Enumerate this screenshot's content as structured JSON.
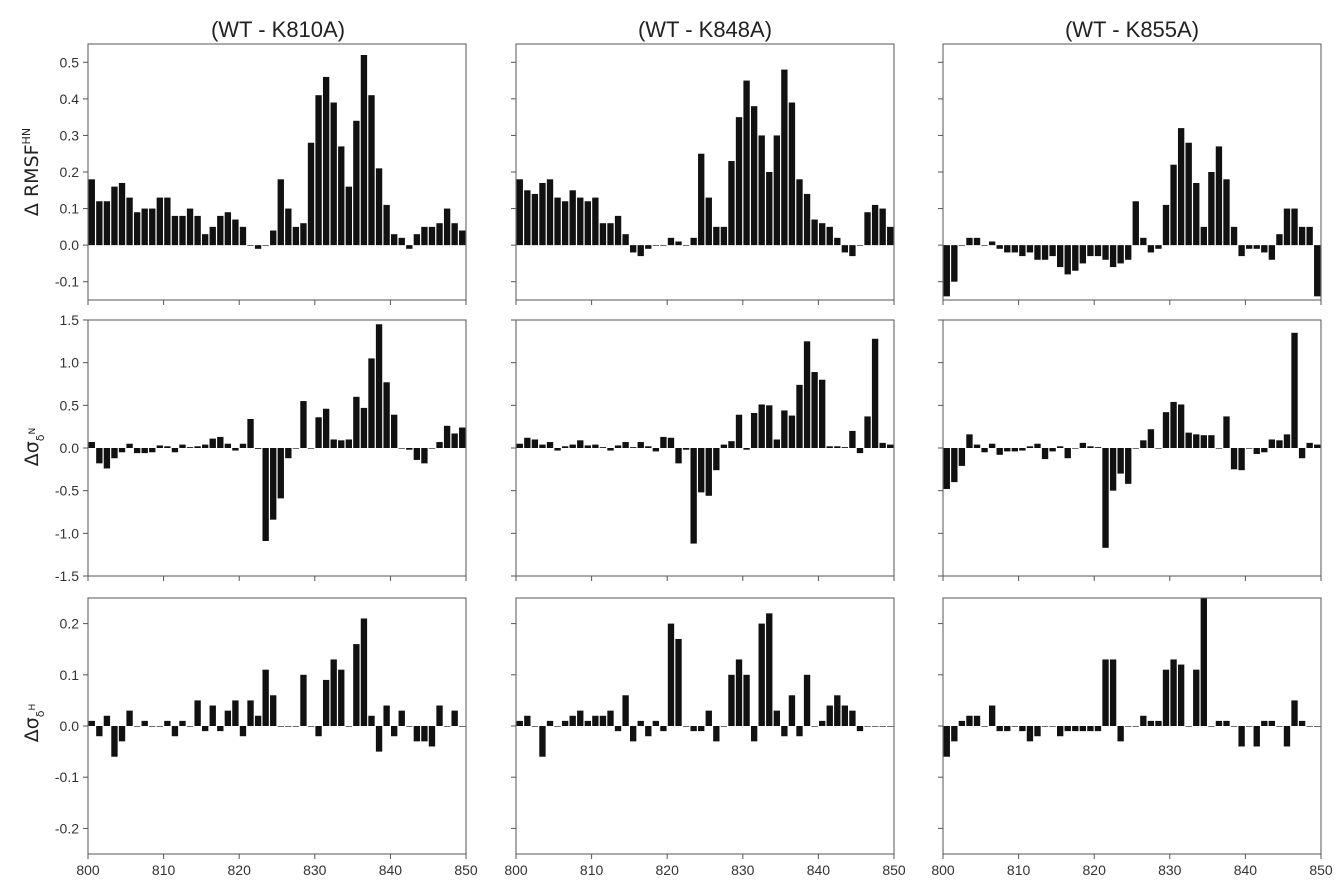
{
  "figure": {
    "panel_titles": [
      "(WT - K810A)",
      "(WT - K848A)",
      "(WT - K855A)"
    ],
    "row_ylabels": [
      {
        "main": "Δ RMSF",
        "sup": "HN"
      },
      {
        "main": "Δσ",
        "sub": "δ",
        "subsup": "N"
      },
      {
        "main": "Δσ",
        "sub": "δ",
        "subsup": "H"
      }
    ],
    "colors": {
      "bar": "#111111",
      "frame": "#555555",
      "zero": "#999999"
    }
  },
  "chart_data": [
    {
      "type": "bar",
      "row": 0,
      "col": 0,
      "title": "(WT - K810A)",
      "ylabel": "Δ RMSF^HN",
      "xlim": [
        800,
        850
      ],
      "xticks": [
        800,
        810,
        820,
        830,
        840,
        850
      ],
      "ylim": [
        -0.15,
        0.55
      ],
      "yticks": [
        -0.1,
        0.0,
        0.1,
        0.2,
        0.3,
        0.4,
        0.5
      ],
      "ytick_labels": [
        "-0.1",
        "0.0",
        "0.1",
        "0.2",
        "0.3",
        "0.4",
        "0.5"
      ],
      "x": [
        800,
        801,
        802,
        803,
        804,
        805,
        806,
        807,
        808,
        809,
        810,
        811,
        812,
        813,
        814,
        815,
        816,
        817,
        818,
        819,
        820,
        821,
        822,
        823,
        824,
        825,
        826,
        827,
        828,
        829,
        830,
        831,
        832,
        833,
        834,
        835,
        836,
        837,
        838,
        839,
        840,
        841,
        842,
        843,
        844,
        845,
        846,
        847,
        848,
        849
      ],
      "values": [
        0.18,
        0.12,
        0.12,
        0.16,
        0.17,
        0.13,
        0.09,
        0.1,
        0.1,
        0.13,
        0.13,
        0.08,
        0.08,
        0.1,
        0.08,
        0.03,
        0.05,
        0.08,
        0.09,
        0.07,
        0.05,
        0.0,
        -0.01,
        0.0,
        0.04,
        0.18,
        0.1,
        0.05,
        0.06,
        0.28,
        0.41,
        0.46,
        0.39,
        0.27,
        0.16,
        0.34,
        0.52,
        0.41,
        0.21,
        0.11,
        0.03,
        0.02,
        -0.01,
        0.03,
        0.05,
        0.05,
        0.06,
        0.1,
        0.06,
        0.04
      ]
    },
    {
      "type": "bar",
      "row": 0,
      "col": 1,
      "title": "(WT - K848A)",
      "ylabel": "",
      "xlim": [
        800,
        850
      ],
      "xticks": [
        800,
        810,
        820,
        830,
        840,
        850
      ],
      "ylim": [
        -0.15,
        0.55
      ],
      "yticks": [
        -0.1,
        0.0,
        0.1,
        0.2,
        0.3,
        0.4,
        0.5
      ],
      "x": [
        800,
        801,
        802,
        803,
        804,
        805,
        806,
        807,
        808,
        809,
        810,
        811,
        812,
        813,
        814,
        815,
        816,
        817,
        818,
        819,
        820,
        821,
        822,
        823,
        824,
        825,
        826,
        827,
        828,
        829,
        830,
        831,
        832,
        833,
        834,
        835,
        836,
        837,
        838,
        839,
        840,
        841,
        842,
        843,
        844,
        845,
        846,
        847,
        848,
        849
      ],
      "values": [
        0.18,
        0.15,
        0.14,
        0.17,
        0.18,
        0.13,
        0.12,
        0.15,
        0.13,
        0.12,
        0.13,
        0.06,
        0.06,
        0.08,
        0.03,
        -0.02,
        -0.03,
        -0.01,
        0.0,
        0.0,
        0.02,
        0.01,
        0.0,
        0.02,
        0.25,
        0.13,
        0.05,
        0.05,
        0.23,
        0.35,
        0.45,
        0.38,
        0.3,
        0.2,
        0.3,
        0.48,
        0.39,
        0.18,
        0.14,
        0.07,
        0.06,
        0.05,
        0.02,
        -0.02,
        -0.03,
        0.0,
        0.09,
        0.11,
        0.1,
        0.05
      ]
    },
    {
      "type": "bar",
      "row": 0,
      "col": 2,
      "title": "(WT - K855A)",
      "ylabel": "",
      "xlim": [
        800,
        850
      ],
      "xticks": [
        800,
        810,
        820,
        830,
        840,
        850
      ],
      "ylim": [
        -0.15,
        0.55
      ],
      "yticks": [
        -0.1,
        0.0,
        0.1,
        0.2,
        0.3,
        0.4,
        0.5
      ],
      "x": [
        800,
        801,
        802,
        803,
        804,
        805,
        806,
        807,
        808,
        809,
        810,
        811,
        812,
        813,
        814,
        815,
        816,
        817,
        818,
        819,
        820,
        821,
        822,
        823,
        824,
        825,
        826,
        827,
        828,
        829,
        830,
        831,
        832,
        833,
        834,
        835,
        836,
        837,
        838,
        839,
        840,
        841,
        842,
        843,
        844,
        845,
        846,
        847,
        848,
        849
      ],
      "values": [
        -0.14,
        -0.1,
        0.0,
        0.02,
        0.02,
        0.0,
        0.01,
        -0.01,
        -0.02,
        -0.02,
        -0.03,
        -0.02,
        -0.04,
        -0.04,
        -0.03,
        -0.06,
        -0.08,
        -0.07,
        -0.05,
        -0.03,
        -0.03,
        -0.04,
        -0.06,
        -0.05,
        -0.04,
        0.12,
        0.02,
        -0.02,
        -0.01,
        0.11,
        0.22,
        0.32,
        0.28,
        0.17,
        0.05,
        0.2,
        0.27,
        0.18,
        0.05,
        -0.03,
        -0.01,
        -0.01,
        -0.02,
        -0.04,
        0.03,
        0.1,
        0.1,
        0.05,
        0.05,
        -0.14
      ]
    },
    {
      "type": "bar",
      "row": 1,
      "col": 0,
      "title": "",
      "ylabel": "Δσ_δ^N",
      "xlim": [
        800,
        850
      ],
      "xticks": [
        800,
        810,
        820,
        830,
        840,
        850
      ],
      "ylim": [
        -1.5,
        1.5
      ],
      "yticks": [
        -1.5,
        -1.0,
        -0.5,
        0.0,
        0.5,
        1.0,
        1.5
      ],
      "ytick_labels": [
        "-1.5",
        "-1.0",
        "-0.5",
        "0.0",
        "0.5",
        "1.0",
        "1.5"
      ],
      "x": [
        800,
        801,
        802,
        803,
        804,
        805,
        806,
        807,
        808,
        809,
        810,
        811,
        812,
        813,
        814,
        815,
        816,
        817,
        818,
        819,
        820,
        821,
        822,
        823,
        824,
        825,
        826,
        827,
        828,
        829,
        830,
        831,
        832,
        833,
        834,
        835,
        836,
        837,
        838,
        839,
        840,
        841,
        842,
        843,
        844,
        845,
        846,
        847,
        848,
        849
      ],
      "values": [
        0.07,
        -0.18,
        -0.24,
        -0.12,
        -0.05,
        0.05,
        -0.06,
        -0.06,
        -0.05,
        0.03,
        0.02,
        -0.05,
        0.04,
        0.01,
        0.02,
        0.04,
        0.11,
        0.13,
        0.05,
        -0.03,
        0.05,
        0.34,
        -0.01,
        -1.09,
        -0.84,
        -0.59,
        -0.12,
        0.0,
        0.55,
        0.0,
        0.36,
        0.46,
        0.1,
        0.09,
        0.1,
        0.6,
        0.47,
        1.05,
        1.45,
        0.77,
        0.39,
        0.0,
        -0.02,
        -0.14,
        -0.18,
        0.0,
        0.07,
        0.26,
        0.17,
        0.24
      ]
    },
    {
      "type": "bar",
      "row": 1,
      "col": 1,
      "title": "",
      "ylabel": "",
      "xlim": [
        800,
        850
      ],
      "xticks": [
        800,
        810,
        820,
        830,
        840,
        850
      ],
      "ylim": [
        -1.5,
        1.5
      ],
      "yticks": [
        -1.5,
        -1.0,
        -0.5,
        0.0,
        0.5,
        1.0,
        1.5
      ],
      "x": [
        800,
        801,
        802,
        803,
        804,
        805,
        806,
        807,
        808,
        809,
        810,
        811,
        812,
        813,
        814,
        815,
        816,
        817,
        818,
        819,
        820,
        821,
        822,
        823,
        824,
        825,
        826,
        827,
        828,
        829,
        830,
        831,
        832,
        833,
        834,
        835,
        836,
        837,
        838,
        839,
        840,
        841,
        842,
        843,
        844,
        845,
        846,
        847,
        848,
        849
      ],
      "values": [
        0.05,
        0.12,
        0.1,
        0.04,
        0.07,
        -0.03,
        0.02,
        0.04,
        0.09,
        0.03,
        0.04,
        0.01,
        -0.03,
        0.03,
        0.07,
        0.01,
        0.07,
        0.02,
        -0.04,
        0.13,
        0.12,
        -0.18,
        -0.02,
        -1.12,
        -0.52,
        -0.56,
        -0.26,
        0.04,
        0.08,
        0.39,
        -0.02,
        0.41,
        0.51,
        0.5,
        0.1,
        0.44,
        0.38,
        0.74,
        1.25,
        0.89,
        0.8,
        0.02,
        0.02,
        0.01,
        0.2,
        -0.06,
        0.37,
        1.28,
        0.06,
        0.04
      ]
    },
    {
      "type": "bar",
      "row": 1,
      "col": 2,
      "title": "",
      "ylabel": "",
      "xlim": [
        800,
        850
      ],
      "xticks": [
        800,
        810,
        820,
        830,
        840,
        850
      ],
      "ylim": [
        -1.5,
        1.5
      ],
      "yticks": [
        -1.5,
        -1.0,
        -0.5,
        0.0,
        0.5,
        1.0,
        1.5
      ],
      "x": [
        800,
        801,
        802,
        803,
        804,
        805,
        806,
        807,
        808,
        809,
        810,
        811,
        812,
        813,
        814,
        815,
        816,
        817,
        818,
        819,
        820,
        821,
        822,
        823,
        824,
        825,
        826,
        827,
        828,
        829,
        830,
        831,
        832,
        833,
        834,
        835,
        836,
        837,
        838,
        839,
        840,
        841,
        842,
        843,
        844,
        845,
        846,
        847,
        848,
        849
      ],
      "values": [
        -0.48,
        -0.4,
        -0.21,
        0.16,
        0.04,
        -0.05,
        0.05,
        -0.08,
        -0.04,
        -0.04,
        -0.03,
        0.02,
        0.05,
        -0.13,
        -0.04,
        0.02,
        -0.12,
        0.0,
        0.06,
        0.02,
        0.01,
        -1.17,
        -0.5,
        -0.3,
        -0.42,
        0.0,
        0.09,
        0.22,
        0.0,
        0.42,
        0.54,
        0.51,
        0.18,
        0.16,
        0.15,
        0.15,
        0.0,
        0.37,
        -0.25,
        -0.26,
        0.0,
        -0.07,
        -0.05,
        0.1,
        0.09,
        0.16,
        1.35,
        -0.12,
        0.06,
        0.04
      ]
    },
    {
      "type": "bar",
      "row": 2,
      "col": 0,
      "title": "",
      "ylabel": "Δσ_δ^H",
      "xlim": [
        800,
        850
      ],
      "xticks": [
        800,
        810,
        820,
        830,
        840,
        850
      ],
      "ylim": [
        -0.25,
        0.25
      ],
      "yticks": [
        -0.2,
        -0.1,
        0.0,
        0.1,
        0.2
      ],
      "ytick_labels": [
        "-0.2",
        "-0.1",
        "0.0",
        "0.1",
        "0.2"
      ],
      "x": [
        800,
        801,
        802,
        803,
        804,
        805,
        806,
        807,
        808,
        809,
        810,
        811,
        812,
        813,
        814,
        815,
        816,
        817,
        818,
        819,
        820,
        821,
        822,
        823,
        824,
        825,
        826,
        827,
        828,
        829,
        830,
        831,
        832,
        833,
        834,
        835,
        836,
        837,
        838,
        839,
        840,
        841,
        842,
        843,
        844,
        845,
        846,
        847,
        848,
        849
      ],
      "values": [
        0.01,
        -0.02,
        0.02,
        -0.06,
        -0.03,
        0.03,
        0.0,
        0.01,
        0.0,
        0.0,
        0.01,
        -0.02,
        0.01,
        0.0,
        0.05,
        -0.01,
        0.04,
        -0.01,
        0.03,
        0.05,
        -0.02,
        0.05,
        0.02,
        0.11,
        0.06,
        0.0,
        0.0,
        0.0,
        0.1,
        0.0,
        -0.02,
        0.09,
        0.13,
        0.11,
        0.0,
        0.16,
        0.21,
        0.02,
        -0.05,
        0.04,
        -0.02,
        0.03,
        0.0,
        -0.03,
        -0.03,
        -0.04,
        0.04,
        0.0,
        0.03,
        0.0
      ]
    },
    {
      "type": "bar",
      "row": 2,
      "col": 1,
      "title": "",
      "ylabel": "",
      "xlim": [
        800,
        850
      ],
      "xticks": [
        800,
        810,
        820,
        830,
        840,
        850
      ],
      "ylim": [
        -0.25,
        0.25
      ],
      "yticks": [
        -0.2,
        -0.1,
        0.0,
        0.1,
        0.2
      ],
      "x": [
        800,
        801,
        802,
        803,
        804,
        805,
        806,
        807,
        808,
        809,
        810,
        811,
        812,
        813,
        814,
        815,
        816,
        817,
        818,
        819,
        820,
        821,
        822,
        823,
        824,
        825,
        826,
        827,
        828,
        829,
        830,
        831,
        832,
        833,
        834,
        835,
        836,
        837,
        838,
        839,
        840,
        841,
        842,
        843,
        844,
        845,
        846,
        847,
        848,
        849
      ],
      "values": [
        0.01,
        0.02,
        0.0,
        -0.06,
        0.01,
        0.0,
        0.01,
        0.02,
        0.03,
        0.01,
        0.02,
        0.02,
        0.03,
        -0.01,
        0.06,
        -0.03,
        0.01,
        -0.02,
        0.01,
        -0.01,
        0.2,
        0.17,
        0.0,
        -0.01,
        -0.01,
        0.03,
        -0.03,
        0.0,
        0.1,
        0.13,
        0.1,
        -0.03,
        0.2,
        0.22,
        0.03,
        -0.02,
        0.06,
        -0.02,
        0.1,
        0.0,
        0.01,
        0.04,
        0.06,
        0.04,
        0.03,
        -0.01,
        0.0,
        0.0,
        0.0,
        0.0
      ]
    },
    {
      "type": "bar",
      "row": 2,
      "col": 2,
      "title": "",
      "ylabel": "",
      "xlim": [
        800,
        850
      ],
      "xticks": [
        800,
        810,
        820,
        830,
        840,
        850
      ],
      "ylim": [
        -0.25,
        0.25
      ],
      "yticks": [
        -0.2,
        -0.1,
        0.0,
        0.1,
        0.2
      ],
      "x": [
        800,
        801,
        802,
        803,
        804,
        805,
        806,
        807,
        808,
        809,
        810,
        811,
        812,
        813,
        814,
        815,
        816,
        817,
        818,
        819,
        820,
        821,
        822,
        823,
        824,
        825,
        826,
        827,
        828,
        829,
        830,
        831,
        832,
        833,
        834,
        835,
        836,
        837,
        838,
        839,
        840,
        841,
        842,
        843,
        844,
        845,
        846,
        847,
        848,
        849
      ],
      "values": [
        -0.06,
        -0.03,
        0.01,
        0.02,
        0.02,
        0.0,
        0.04,
        -0.01,
        -0.01,
        0.0,
        -0.01,
        -0.03,
        -0.02,
        0.0,
        0.0,
        -0.02,
        -0.01,
        -0.01,
        -0.01,
        -0.01,
        -0.01,
        0.13,
        0.13,
        -0.03,
        0.0,
        0.0,
        0.02,
        0.01,
        0.01,
        0.11,
        0.13,
        0.12,
        0.0,
        0.11,
        0.25,
        0.0,
        0.01,
        0.01,
        0.0,
        -0.04,
        0.0,
        -0.04,
        0.01,
        0.01,
        0.0,
        -0.04,
        0.05,
        0.01,
        0.0,
        0.0
      ]
    }
  ]
}
